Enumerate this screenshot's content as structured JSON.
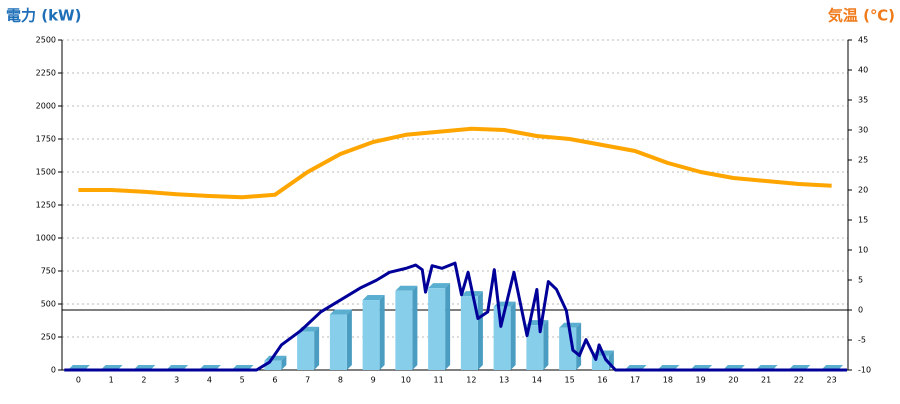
{
  "chart_data": {
    "type": "bar",
    "y_label": "電力 (kW)",
    "y2_label": "気温 (℃)",
    "categories": [
      "0",
      "1",
      "2",
      "3",
      "4",
      "5",
      "6",
      "7",
      "8",
      "9",
      "10",
      "11",
      "12",
      "13",
      "14",
      "15",
      "16",
      "17",
      "18",
      "19",
      "20",
      "21",
      "22",
      "23"
    ],
    "ylim": [
      0,
      2500
    ],
    "yticks": [
      0,
      250,
      500,
      750,
      1000,
      1250,
      1500,
      1750,
      2000,
      2250,
      2500
    ],
    "y2lim": [
      -10,
      45
    ],
    "y2ticks": [
      -10,
      -5,
      0,
      5,
      10,
      15,
      20,
      25,
      30,
      35,
      40,
      45
    ],
    "grid": true,
    "series": [
      {
        "type": "bar",
        "color": "#87ceeb",
        "values": [
          0,
          0,
          0,
          0,
          0,
          0,
          70,
          290,
          420,
          530,
          600,
          620,
          560,
          480,
          340,
          320,
          110,
          0,
          0,
          0,
          0,
          0,
          0,
          0
        ]
      },
      {
        "type": "line",
        "color": "#000099",
        "x": [
          -0.43,
          5.44,
          5.84,
          6.2,
          6.8,
          7.4,
          8.0,
          8.6,
          9.1,
          9.5,
          10.0,
          10.3,
          10.5,
          10.6,
          10.8,
          11.1,
          11.5,
          11.7,
          11.9,
          12.2,
          12.5,
          12.7,
          12.9,
          13.3,
          13.7,
          14.0,
          14.1,
          14.35,
          14.6,
          14.9,
          15.1,
          15.3,
          15.5,
          15.8,
          15.9,
          16.1,
          16.4,
          23.47
        ],
        "values": [
          0,
          0,
          60,
          190,
          300,
          440,
          530,
          620,
          680,
          740,
          770,
          795,
          760,
          590,
          790,
          770,
          810,
          570,
          740,
          390,
          440,
          760,
          330,
          740,
          260,
          610,
          290,
          670,
          610,
          450,
          150,
          110,
          230,
          80,
          190,
          80,
          0,
          0
        ]
      },
      {
        "type": "line",
        "color": "#ffa500",
        "axis": "y2",
        "values": [
          20,
          20,
          19.7,
          19.3,
          19,
          18.8,
          19.2,
          23,
          26,
          28,
          29.2,
          29.7,
          30.2,
          30,
          29,
          28.5,
          27.5,
          26.5,
          24.5,
          23,
          22,
          21.5,
          21,
          20.7
        ]
      }
    ]
  }
}
